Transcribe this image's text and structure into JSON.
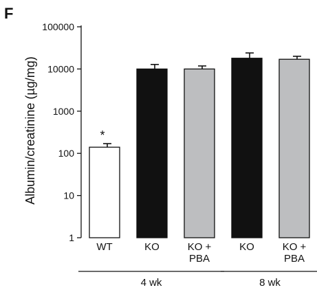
{
  "panel_label": "F",
  "chart_data": {
    "type": "bar",
    "ylabel": "Albumin/creatinine (µg/mg)",
    "yscale": "log",
    "ylim": [
      1,
      100000
    ],
    "yticks": [
      1,
      10,
      100,
      1000,
      10000,
      100000
    ],
    "yticklabels": [
      "1",
      "10",
      "100",
      "1000",
      "10000",
      "100000"
    ],
    "categories": [
      {
        "label_lines": [
          "WT"
        ],
        "value": 140,
        "error": 30,
        "fill": "#ffffff",
        "annotation": "*"
      },
      {
        "label_lines": [
          "KO"
        ],
        "value": 10000,
        "error": 2800,
        "fill": "#111111",
        "annotation": ""
      },
      {
        "label_lines": [
          "KO +",
          "PBA"
        ],
        "value": 10000,
        "error": 1800,
        "fill": "#bdbec0",
        "annotation": ""
      },
      {
        "label_lines": [
          "KO"
        ],
        "value": 18000,
        "error": 6000,
        "fill": "#111111",
        "annotation": ""
      },
      {
        "label_lines": [
          "KO +",
          "PBA"
        ],
        "value": 17000,
        "error": 3000,
        "fill": "#bdbec0",
        "annotation": ""
      }
    ],
    "groups": [
      {
        "label": "4 wk",
        "members": [
          0,
          1,
          2
        ]
      },
      {
        "label": "8 wk",
        "members": [
          3,
          4
        ]
      }
    ],
    "grid": false,
    "legend": "none"
  }
}
